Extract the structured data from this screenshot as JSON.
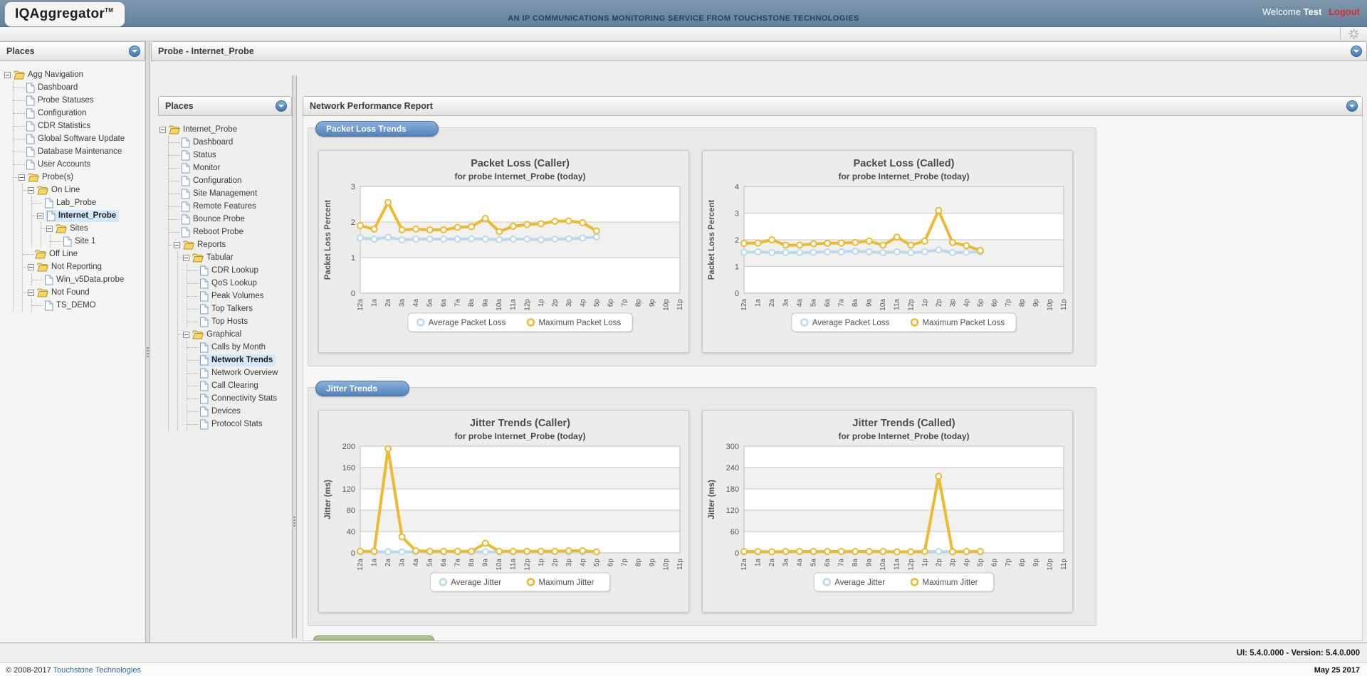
{
  "header": {
    "logo": "IQAggregator",
    "logo_tm": "TM",
    "tagline": "AN IP COMMUNICATIONS MONITORING SERVICE FROM TOUCHSTONE TECHNOLOGIES",
    "welcome": "Welcome",
    "user": "Test",
    "logout": "Logout"
  },
  "left_panel": {
    "title": "Places",
    "tree": [
      {
        "label": "Agg Navigation",
        "icon": "folder",
        "expanded": true,
        "children": [
          {
            "label": "Dashboard",
            "icon": "file"
          },
          {
            "label": "Probe Statuses",
            "icon": "file"
          },
          {
            "label": "Configuration",
            "icon": "file"
          },
          {
            "label": "CDR Statistics",
            "icon": "file"
          },
          {
            "label": "Global Software Update",
            "icon": "file"
          },
          {
            "label": "Database Maintenance",
            "icon": "file"
          },
          {
            "label": "User Accounts",
            "icon": "file"
          },
          {
            "label": "Probe(s)",
            "icon": "folder",
            "expanded": true,
            "children": [
              {
                "label": "On Line",
                "icon": "folder",
                "expanded": true,
                "children": [
                  {
                    "label": "Lab_Probe",
                    "icon": "file"
                  },
                  {
                    "label": "Internet_Probe",
                    "icon": "file",
                    "selected": true,
                    "expanded": true,
                    "children": [
                      {
                        "label": "Sites",
                        "icon": "folder",
                        "expanded": true,
                        "children": [
                          {
                            "label": "Site 1",
                            "icon": "file"
                          }
                        ]
                      }
                    ]
                  }
                ]
              },
              {
                "label": "Off Line",
                "icon": "folder"
              },
              {
                "label": "Not Reporting",
                "icon": "folder",
                "expanded": true,
                "children": [
                  {
                    "label": "Win_v5Data.probe",
                    "icon": "file"
                  }
                ]
              },
              {
                "label": "Not Found",
                "icon": "folder",
                "expanded": true,
                "children": [
                  {
                    "label": "TS_DEMO",
                    "icon": "file"
                  }
                ]
              }
            ]
          }
        ]
      }
    ]
  },
  "probe_panel": {
    "title": "Probe - Internet_Probe"
  },
  "places_panel": {
    "title": "Places",
    "tree": [
      {
        "label": "Internet_Probe",
        "icon": "folder",
        "expanded": true,
        "children": [
          {
            "label": "Dashboard",
            "icon": "file"
          },
          {
            "label": "Status",
            "icon": "file"
          },
          {
            "label": "Monitor",
            "icon": "file"
          },
          {
            "label": "Configuration",
            "icon": "file"
          },
          {
            "label": "Site Management",
            "icon": "file"
          },
          {
            "label": "Remote Features",
            "icon": "file"
          },
          {
            "label": "Bounce Probe",
            "icon": "file"
          },
          {
            "label": "Reboot Probe",
            "icon": "file"
          },
          {
            "label": "Reports",
            "icon": "folder",
            "expanded": true,
            "children": [
              {
                "label": "Tabular",
                "icon": "folder",
                "expanded": true,
                "children": [
                  {
                    "label": "CDR Lookup",
                    "icon": "file"
                  },
                  {
                    "label": "QoS Lookup",
                    "icon": "file"
                  },
                  {
                    "label": "Peak Volumes",
                    "icon": "file"
                  },
                  {
                    "label": "Top Talkers",
                    "icon": "file"
                  },
                  {
                    "label": "Top Hosts",
                    "icon": "file"
                  }
                ]
              },
              {
                "label": "Graphical",
                "icon": "folder",
                "expanded": true,
                "children": [
                  {
                    "label": "Calls by Month",
                    "icon": "file"
                  },
                  {
                    "label": "Network Trends",
                    "icon": "file",
                    "selected": true
                  },
                  {
                    "label": "Network Overview",
                    "icon": "file"
                  },
                  {
                    "label": "Call Clearing",
                    "icon": "file"
                  },
                  {
                    "label": "Connectivity Stats",
                    "icon": "file"
                  },
                  {
                    "label": "Devices",
                    "icon": "file"
                  },
                  {
                    "label": "Protocol Stats",
                    "icon": "file"
                  }
                ]
              }
            ]
          }
        ]
      }
    ]
  },
  "report": {
    "title": "Network Performance Report",
    "sections": [
      {
        "label": "Packet Loss Trends",
        "charts": [
          0,
          1
        ]
      },
      {
        "label": "Jitter Trends",
        "charts": [
          2,
          3
        ]
      }
    ]
  },
  "colors": {
    "average_series": "#b9d8f0",
    "maximum_series": "#ecb92f",
    "logout_red": "#d82a2a",
    "tab_blue": "#5282ba",
    "selection_blue": "#d5e8f9"
  },
  "chart_data": [
    {
      "type": "line",
      "title": "Packet Loss (Caller)",
      "subtitle": "for probe Internet_Probe (today)",
      "ylabel": "Packet Loss Percent",
      "ylim": [
        0,
        3
      ],
      "yticks": [
        0,
        1,
        2,
        3
      ],
      "grid": true,
      "legend_position": "bottom",
      "categories": [
        "12a",
        "1a",
        "2a",
        "3a",
        "4a",
        "5a",
        "6a",
        "7a",
        "8a",
        "9a",
        "10a",
        "11a",
        "12p",
        "1p",
        "2p",
        "3p",
        "4p",
        "5p",
        "6p",
        "7p",
        "8p",
        "9p",
        "10p",
        "11p"
      ],
      "series": [
        {
          "name": "Average Packet Loss",
          "values": [
            1.55,
            1.52,
            1.57,
            1.5,
            1.52,
            1.52,
            1.52,
            1.52,
            1.53,
            1.52,
            1.5,
            1.52,
            1.52,
            1.5,
            1.52,
            1.53,
            1.55,
            1.58
          ]
        },
        {
          "name": "Maximum Packet Loss",
          "values": [
            1.9,
            1.8,
            2.55,
            1.78,
            1.8,
            1.78,
            1.78,
            1.85,
            1.87,
            2.1,
            1.73,
            1.88,
            1.93,
            1.95,
            2.02,
            2.03,
            1.98,
            1.75
          ]
        }
      ]
    },
    {
      "type": "line",
      "title": "Packet Loss (Called)",
      "subtitle": "for probe Internet_Probe (today)",
      "ylabel": "Packet Loss Percent",
      "ylim": [
        0,
        4
      ],
      "yticks": [
        0,
        1,
        2,
        3,
        4
      ],
      "grid": true,
      "legend_position": "bottom",
      "categories": [
        "12a",
        "1a",
        "2a",
        "3a",
        "4a",
        "5a",
        "6a",
        "7a",
        "8a",
        "9a",
        "10a",
        "11a",
        "12p",
        "1p",
        "2p",
        "3p",
        "4p",
        "5p",
        "6p",
        "7p",
        "8p",
        "9p",
        "10p",
        "11p"
      ],
      "series": [
        {
          "name": "Average Packet Loss",
          "values": [
            1.53,
            1.55,
            1.52,
            1.52,
            1.52,
            1.53,
            1.55,
            1.55,
            1.57,
            1.55,
            1.52,
            1.55,
            1.52,
            1.55,
            1.62,
            1.52,
            1.53,
            1.55
          ]
        },
        {
          "name": "Maximum Packet Loss",
          "values": [
            1.87,
            1.88,
            2.0,
            1.8,
            1.8,
            1.85,
            1.87,
            1.88,
            1.9,
            1.95,
            1.8,
            2.1,
            1.8,
            1.95,
            3.1,
            1.9,
            1.78,
            1.6
          ]
        }
      ]
    },
    {
      "type": "line",
      "title": "Jitter Trends (Caller)",
      "subtitle": "for probe Internet_Probe (today)",
      "ylabel": "Jitter (ms)",
      "ylim": [
        0,
        200
      ],
      "yticks": [
        0,
        40,
        80,
        120,
        160,
        200
      ],
      "grid": true,
      "legend_position": "bottom",
      "categories": [
        "12a",
        "1a",
        "2a",
        "3a",
        "4a",
        "5a",
        "6a",
        "7a",
        "8a",
        "9a",
        "10a",
        "11a",
        "12p",
        "1p",
        "2p",
        "3p",
        "4p",
        "5p",
        "6p",
        "7p",
        "8p",
        "9p",
        "10p",
        "11p"
      ],
      "series": [
        {
          "name": "Average Jitter",
          "values": [
            2,
            2,
            2,
            2,
            2,
            2,
            2,
            2,
            2,
            2,
            2,
            2,
            2,
            2,
            2,
            2,
            2,
            2
          ]
        },
        {
          "name": "Maximum Jitter",
          "values": [
            3,
            3,
            195,
            30,
            4,
            3,
            3,
            3,
            3,
            18,
            3,
            3,
            3,
            3,
            3,
            4,
            4,
            2
          ]
        }
      ]
    },
    {
      "type": "line",
      "title": "Jitter Trends (Called)",
      "subtitle": "for probe Internet_Probe (today)",
      "ylabel": "Jitter (ms)",
      "ylim": [
        0,
        300
      ],
      "yticks": [
        0,
        60,
        120,
        180,
        240,
        300
      ],
      "grid": true,
      "legend_position": "bottom",
      "categories": [
        "12a",
        "1a",
        "2a",
        "3a",
        "4a",
        "5a",
        "6a",
        "7a",
        "8a",
        "9a",
        "10a",
        "11a",
        "12p",
        "1p",
        "2p",
        "3p",
        "4p",
        "5p",
        "6p",
        "7p",
        "8p",
        "9p",
        "10p",
        "11p"
      ],
      "series": [
        {
          "name": "Average Jitter",
          "values": [
            3,
            3,
            3,
            3,
            3,
            3,
            3,
            3,
            3,
            3,
            3,
            3,
            3,
            4,
            4,
            3,
            3,
            3
          ]
        },
        {
          "name": "Maximum Jitter",
          "values": [
            4,
            4,
            3,
            4,
            4,
            4,
            4,
            4,
            4,
            4,
            4,
            3,
            3,
            4,
            215,
            3,
            4,
            4
          ]
        }
      ]
    }
  ],
  "footer": {
    "copyright_prefix": "© 2008-2017",
    "copyright_link": "Touchstone Technologies",
    "ui_version": "UI: 5.4.0.000 - Version: 5.4.0.000",
    "date": "May 25 2017"
  }
}
